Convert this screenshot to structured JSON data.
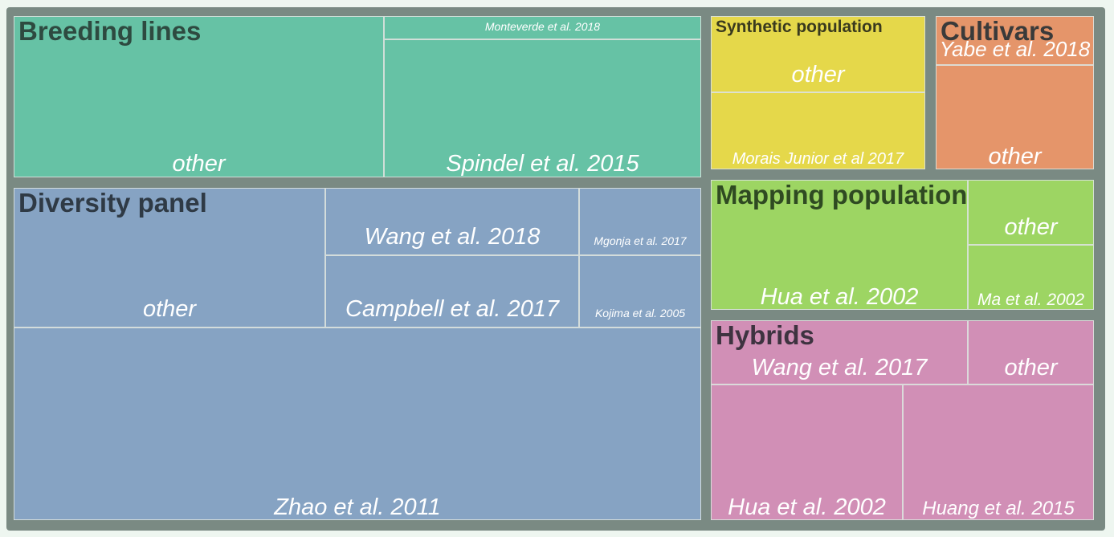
{
  "chart_data": {
    "type": "treemap",
    "groups": [
      {
        "name": "Breeding lines",
        "color": "#66c2a5",
        "title_color": "#2e4a40",
        "items": [
          {
            "label": "other"
          },
          {
            "label": "Monteverde et al. 2018"
          },
          {
            "label": "Spindel et al. 2015"
          }
        ]
      },
      {
        "name": "Synthetic population",
        "color": "#e5d84a",
        "title_color": "#3a3a1e",
        "items": [
          {
            "label": "other"
          },
          {
            "label": "Morais Junior et al 2017"
          }
        ]
      },
      {
        "name": "Cultivars",
        "color": "#e5956a",
        "title_color": "#3a3a3a",
        "items": [
          {
            "label": "Yabe et al. 2018"
          },
          {
            "label": "other"
          }
        ]
      },
      {
        "name": "Diversity panel",
        "color": "#86a3c3",
        "title_color": "#2f3a45",
        "items": [
          {
            "label": "other"
          },
          {
            "label": "Wang et al. 2018"
          },
          {
            "label": "Mgonja et al. 2017"
          },
          {
            "label": "Campbell et al. 2017"
          },
          {
            "label": "Kojima et al. 2005"
          },
          {
            "label": "Zhao et al. 2011"
          }
        ]
      },
      {
        "name": "Mapping population",
        "color": "#9dd563",
        "title_color": "#2f4a22",
        "items": [
          {
            "label": "Hua et al. 2002"
          },
          {
            "label": "other"
          },
          {
            "label": "Ma et al. 2002"
          }
        ]
      },
      {
        "name": "Hybrids",
        "color": "#d18fb6",
        "title_color": "#3e3340",
        "items": [
          {
            "label": "Wang et al. 2017"
          },
          {
            "label": "other"
          },
          {
            "label": "Hua et al. 2002"
          },
          {
            "label": "Huang et al. 2015"
          }
        ]
      }
    ]
  }
}
